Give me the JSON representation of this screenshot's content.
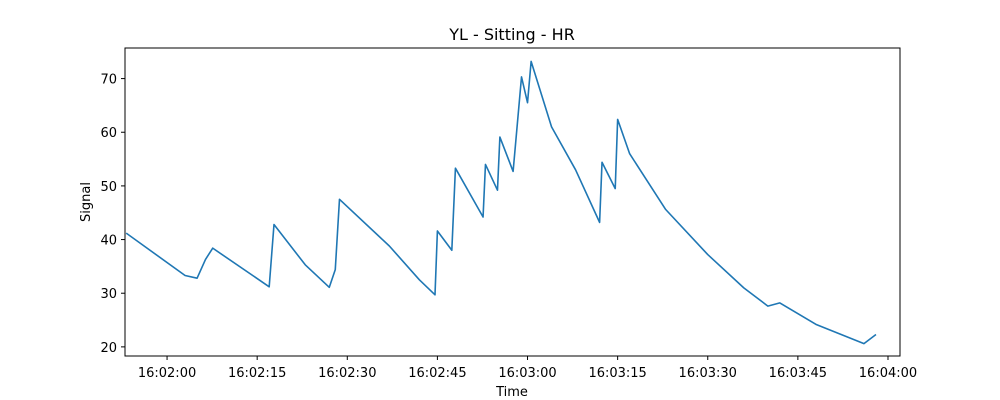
{
  "chart_data": {
    "type": "line",
    "title": "YL - Sitting - HR",
    "xlabel": "Time",
    "ylabel": "Signal",
    "x_ticks": [
      "16:02:00",
      "16:02:15",
      "16:02:30",
      "16:02:45",
      "16:03:00",
      "16:03:15",
      "16:03:30",
      "16:03:45",
      "16:04:00"
    ],
    "y_ticks": [
      20,
      30,
      40,
      50,
      60,
      70
    ],
    "xlim": [
      "16:01:53",
      "16:04:02"
    ],
    "ylim": [
      18.3,
      75.7
    ],
    "grid": false,
    "series": [
      {
        "color": "#1f77b4",
        "points": [
          [
            "16:01:53.2",
            41.2
          ],
          [
            "16:02:03.0",
            33.3
          ],
          [
            "16:02:05.0",
            32.8
          ],
          [
            "16:02:06.4",
            36.3
          ],
          [
            "16:02:07.6",
            38.4
          ],
          [
            "16:02:17.0",
            31.2
          ],
          [
            "16:02:17.8",
            42.8
          ],
          [
            "16:02:23.0",
            35.3
          ],
          [
            "16:02:27.0",
            31.1
          ],
          [
            "16:02:28.0",
            34.4
          ],
          [
            "16:02:28.7",
            47.5
          ],
          [
            "16:02:37.0",
            38.8
          ],
          [
            "16:02:42.0",
            32.5
          ],
          [
            "16:02:44.6",
            29.7
          ],
          [
            "16:02:45.0",
            41.6
          ],
          [
            "16:02:47.4",
            38.0
          ],
          [
            "16:02:48.0",
            53.3
          ],
          [
            "16:02:52.6",
            44.2
          ],
          [
            "16:02:53.0",
            54.0
          ],
          [
            "16:02:55.0",
            49.2
          ],
          [
            "16:02:55.4",
            59.1
          ],
          [
            "16:02:57.6",
            52.7
          ],
          [
            "16:02:59.0",
            70.3
          ],
          [
            "16:03:00.0",
            65.5
          ],
          [
            "16:03:00.6",
            73.2
          ],
          [
            "16:03:04.0",
            61.0
          ],
          [
            "16:03:08.0",
            53.0
          ],
          [
            "16:03:12.0",
            43.2
          ],
          [
            "16:03:12.4",
            54.4
          ],
          [
            "16:03:14.6",
            49.5
          ],
          [
            "16:03:15.0",
            62.4
          ],
          [
            "16:03:17.0",
            56.0
          ],
          [
            "16:03:23.0",
            45.6
          ],
          [
            "16:03:30.0",
            37.2
          ],
          [
            "16:03:36.0",
            31.0
          ],
          [
            "16:03:40.0",
            27.6
          ],
          [
            "16:03:42.0",
            28.2
          ],
          [
            "16:03:48.0",
            24.2
          ],
          [
            "16:03:56.0",
            20.6
          ],
          [
            "16:03:58.0",
            22.3
          ]
        ]
      }
    ]
  }
}
